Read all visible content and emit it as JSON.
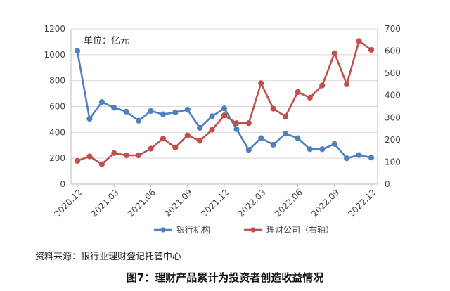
{
  "chart_data": {
    "type": "line",
    "unit_label": "单位：亿元",
    "categories": [
      "2020.12",
      "2021.01",
      "2021.02",
      "2021.03",
      "2021.04",
      "2021.05",
      "2021.06",
      "2021.07",
      "2021.08",
      "2021.09",
      "2021.10",
      "2021.11",
      "2021.12",
      "2022.01",
      "2022.02",
      "2022.03",
      "2022.04",
      "2022.05",
      "2022.06",
      "2022.07",
      "2022.08",
      "2022.09",
      "2022.10",
      "2022.11",
      "2022.12"
    ],
    "x_tick_labels": [
      "2020.12",
      "2021.03",
      "2021.06",
      "2021.09",
      "2021.12",
      "2022.03",
      "2022.06",
      "2022.09",
      "2022.12"
    ],
    "y_left": {
      "ticks": [
        "0",
        "200",
        "400",
        "600",
        "800",
        "1000",
        "1200"
      ],
      "ylim": [
        0,
        1200
      ]
    },
    "y_right": {
      "ticks": [
        "0",
        "100",
        "200",
        "300",
        "400",
        "500",
        "600",
        "700"
      ],
      "ylim": [
        0,
        700
      ]
    },
    "series": [
      {
        "name": "银行机构",
        "axis": "left",
        "color": "#4f81bd",
        "values": [
          1030,
          505,
          635,
          590,
          560,
          490,
          565,
          540,
          555,
          575,
          435,
          525,
          585,
          425,
          265,
          355,
          305,
          390,
          355,
          270,
          270,
          310,
          200,
          225,
          205
        ]
      },
      {
        "name": "理财公司（右轴）",
        "axis": "right",
        "color": "#c0504d",
        "values": [
          105,
          125,
          90,
          140,
          130,
          130,
          160,
          205,
          165,
          220,
          195,
          245,
          310,
          275,
          275,
          455,
          340,
          305,
          415,
          390,
          445,
          590,
          450,
          645,
          605
        ]
      }
    ],
    "grid": "horizontal",
    "legend_position": "bottom"
  },
  "source_text": "资料来源：银行业理财登记托管中心",
  "caption": "图7：理财产品累计为投资者创造收益情况"
}
